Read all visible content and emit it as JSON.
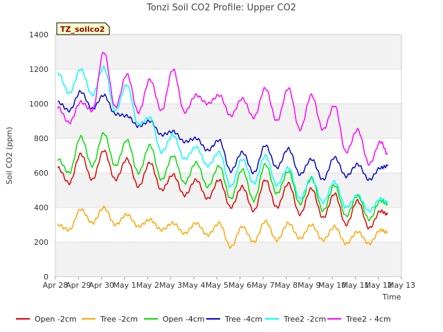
{
  "chart_data": {
    "type": "line",
    "title": "Tonzi Soil CO2 Profile: Upper CO2",
    "xlabel": "Time",
    "ylabel": "Soil CO2 (ppm)",
    "ylim": [
      0,
      1400
    ],
    "yticks": [
      0,
      200,
      400,
      600,
      800,
      1000,
      1200,
      1400
    ],
    "xlim": [
      0,
      15
    ],
    "xticks": [
      {
        "x": 0,
        "label": "Apr 28"
      },
      {
        "x": 1,
        "label": "Apr 29"
      },
      {
        "x": 2,
        "label": "Apr 30"
      },
      {
        "x": 3,
        "label": "May 1"
      },
      {
        "x": 4,
        "label": "May 2"
      },
      {
        "x": 5,
        "label": "May 3"
      },
      {
        "x": 6,
        "label": "May 4"
      },
      {
        "x": 7,
        "label": "May 5"
      },
      {
        "x": 8,
        "label": "May 6"
      },
      {
        "x": 9,
        "label": "May 7"
      },
      {
        "x": 10,
        "label": "May 8"
      },
      {
        "x": 11,
        "label": "May 9"
      },
      {
        "x": 12,
        "label": "May 10"
      },
      {
        "x": 13,
        "label": "May 11"
      },
      {
        "x": 14,
        "label": "May 12"
      },
      {
        "x": 15,
        "label": "May 13"
      }
    ],
    "badge": "TZ_soilco2",
    "grid": "horizontal bands",
    "legend_position": "bottom",
    "series": [
      {
        "name": "Open -2cm",
        "color": "#dd0000",
        "x": [
          0.1,
          0.6,
          1.1,
          1.6,
          2.1,
          2.6,
          3.1,
          3.6,
          4.1,
          4.6,
          5.1,
          5.6,
          6.1,
          6.6,
          7.1,
          7.6,
          8.1,
          8.6,
          9.1,
          9.6,
          10.1,
          10.6,
          11.1,
          11.6,
          12.1,
          12.6,
          13.1,
          13.6,
          14.1,
          14.4
        ],
        "values": [
          630,
          540,
          710,
          560,
          730,
          560,
          680,
          520,
          660,
          500,
          590,
          470,
          560,
          450,
          560,
          400,
          520,
          380,
          560,
          400,
          540,
          360,
          510,
          340,
          480,
          300,
          440,
          280,
          380,
          360
        ]
      },
      {
        "name": "Tree -2cm",
        "color": "#ffa500",
        "x": [
          0.1,
          0.6,
          1.1,
          1.6,
          2.1,
          2.6,
          3.1,
          3.6,
          4.1,
          4.6,
          5.1,
          5.6,
          6.1,
          6.6,
          7.1,
          7.6,
          8.1,
          8.6,
          9.1,
          9.6,
          10.1,
          10.6,
          11.1,
          11.6,
          12.1,
          12.6,
          13.1,
          13.6,
          14.1,
          14.4
        ],
        "values": [
          300,
          270,
          390,
          310,
          400,
          300,
          360,
          290,
          330,
          270,
          310,
          250,
          310,
          240,
          310,
          170,
          290,
          200,
          320,
          210,
          310,
          220,
          300,
          210,
          290,
          190,
          260,
          190,
          270,
          255
        ]
      },
      {
        "name": "Open -4cm",
        "color": "#00dd00",
        "x": [
          0.1,
          0.6,
          1.1,
          1.6,
          2.1,
          2.6,
          3.1,
          3.6,
          4.1,
          4.6,
          5.1,
          5.6,
          6.1,
          6.6,
          7.1,
          7.6,
          8.1,
          8.6,
          9.1,
          9.6,
          10.1,
          10.6,
          11.1,
          11.6,
          12.1,
          12.6,
          13.1,
          13.6,
          14.1,
          14.4
        ],
        "values": [
          680,
          600,
          810,
          640,
          830,
          640,
          790,
          600,
          760,
          560,
          700,
          540,
          660,
          520,
          640,
          450,
          620,
          440,
          650,
          480,
          610,
          420,
          570,
          380,
          530,
          350,
          470,
          330,
          440,
          420
        ]
      },
      {
        "name": "Tree -4cm",
        "color": "#0000cc",
        "x": [
          0.1,
          0.6,
          1.1,
          1.6,
          2.1,
          2.6,
          3.1,
          3.6,
          4.1,
          4.6,
          5.1,
          5.6,
          6.1,
          6.6,
          7.1,
          7.6,
          8.1,
          8.6,
          9.1,
          9.6,
          10.1,
          10.6,
          11.1,
          11.6,
          12.1,
          12.6,
          13.1,
          13.6,
          14.1,
          14.4
        ],
        "values": [
          1010,
          960,
          1070,
          970,
          1050,
          940,
          930,
          870,
          900,
          820,
          840,
          780,
          800,
          730,
          790,
          610,
          720,
          600,
          760,
          630,
          740,
          590,
          680,
          560,
          690,
          580,
          650,
          560,
          630,
          640
        ]
      },
      {
        "name": "Tree2 -2cm",
        "color": "#00ffff",
        "x": [
          0.1,
          0.6,
          1.1,
          1.6,
          2.1,
          2.6,
          3.1,
          3.6,
          4.1,
          4.6,
          5.1,
          5.6,
          6.1,
          6.6,
          7.1,
          7.6,
          8.1,
          8.6,
          9.1,
          9.6,
          10.1,
          10.6,
          11.1,
          11.6,
          12.1,
          12.6,
          13.1,
          13.6,
          14.1,
          14.4
        ],
        "values": [
          1180,
          1060,
          1200,
          1050,
          1210,
          960,
          1110,
          880,
          920,
          720,
          820,
          680,
          750,
          640,
          720,
          520,
          680,
          540,
          700,
          530,
          630,
          450,
          570,
          430,
          550,
          400,
          470,
          380,
          450,
          430
        ]
      },
      {
        "name": "Tree2 - 4cm",
        "color": "#ff00ff",
        "x": [
          0.1,
          0.6,
          1.1,
          1.6,
          2.1,
          2.6,
          3.1,
          3.6,
          4.1,
          4.6,
          5.1,
          5.6,
          6.1,
          6.6,
          7.1,
          7.6,
          8.1,
          8.6,
          9.1,
          9.6,
          10.1,
          10.6,
          11.1,
          11.6,
          12.1,
          12.6,
          13.1,
          13.6,
          14.1,
          14.4
        ],
        "values": [
          980,
          890,
          1010,
          960,
          1300,
          980,
          1170,
          950,
          1140,
          960,
          1200,
          950,
          1050,
          1000,
          1050,
          930,
          1030,
          920,
          1090,
          900,
          1090,
          850,
          1050,
          850,
          990,
          720,
          850,
          650,
          780,
          710
        ]
      }
    ]
  }
}
